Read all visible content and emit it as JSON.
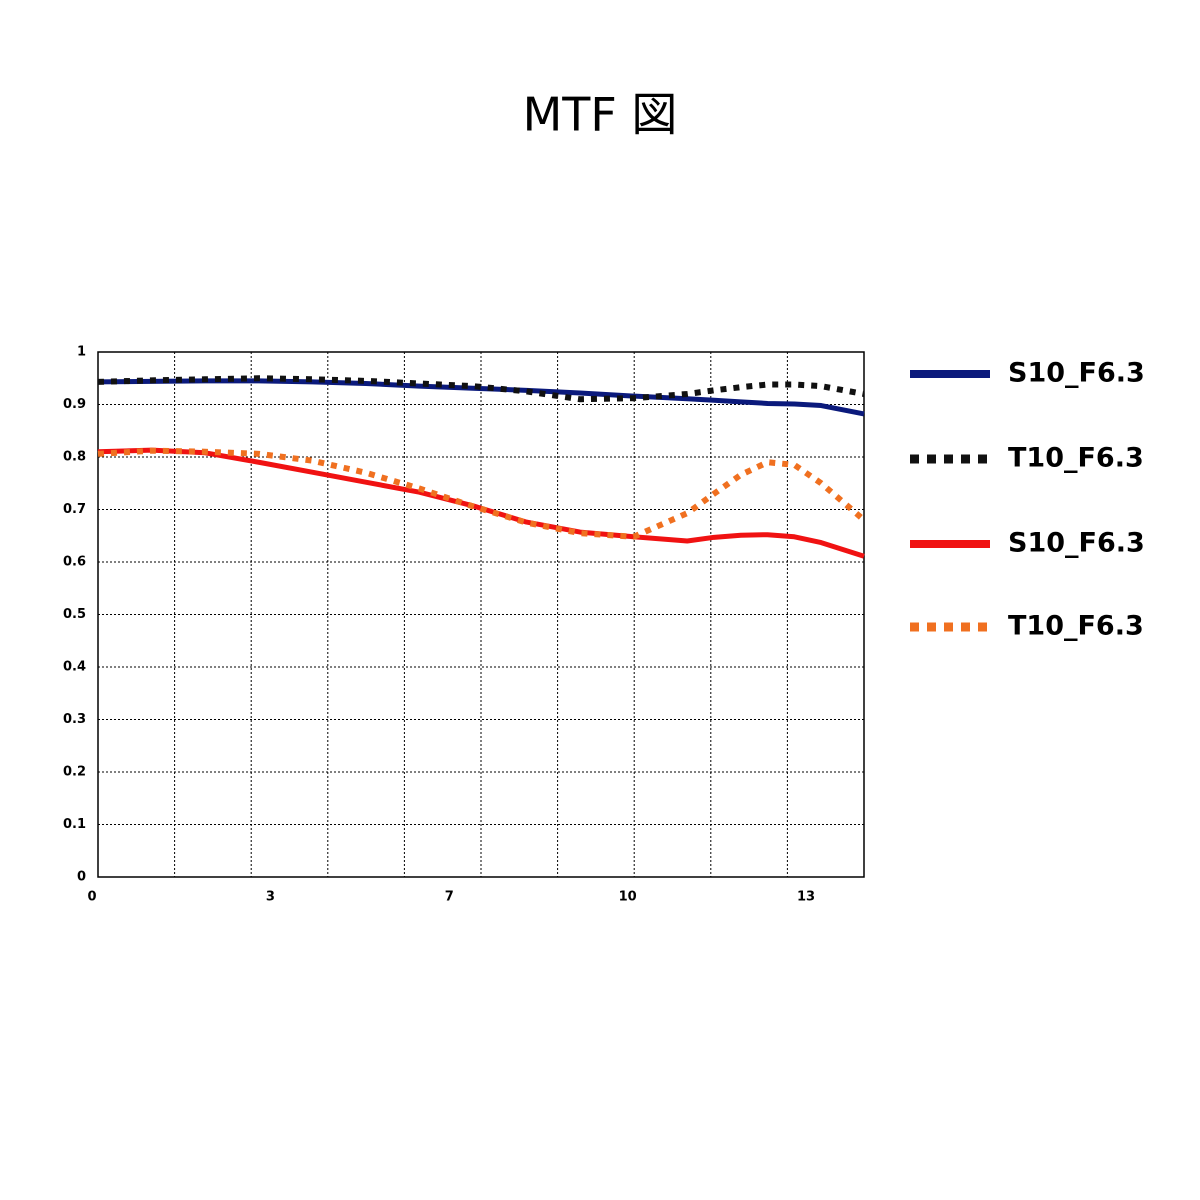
{
  "chart_data": {
    "type": "line",
    "title": "MTF 図",
    "x": [
      0,
      1,
      2,
      3,
      4,
      5,
      6,
      7,
      8,
      9,
      10,
      11,
      11.5,
      12,
      12.5,
      13,
      13.5,
      14.3
    ],
    "xlim": [
      0,
      14.3
    ],
    "xticks": [
      0,
      {
        "value": 3.33,
        "label": "3"
      },
      {
        "value": 6.67,
        "label": "7"
      },
      10,
      {
        "value": 13.33,
        "label": "13"
      }
    ],
    "ylim": [
      0,
      1
    ],
    "yticks": [
      0,
      0.1,
      0.2,
      0.3,
      0.4,
      0.5,
      0.6,
      0.7,
      0.8,
      0.9,
      1
    ],
    "grid": true,
    "series": [
      {
        "name": "S10_F6.3",
        "color": "#0b1a7c",
        "style": "solid",
        "values": [
          0.943,
          0.944,
          0.945,
          0.945,
          0.943,
          0.94,
          0.935,
          0.931,
          0.927,
          0.922,
          0.916,
          0.911,
          0.908,
          0.905,
          0.902,
          0.901,
          0.898,
          0.882
        ]
      },
      {
        "name": "T10_F6.3",
        "color": "#111111",
        "style": "dotted",
        "values": [
          0.943,
          0.946,
          0.948,
          0.95,
          0.948,
          0.945,
          0.94,
          0.935,
          0.925,
          0.91,
          0.912,
          0.92,
          0.927,
          0.933,
          0.938,
          0.938,
          0.935,
          0.92
        ]
      },
      {
        "name": "S10_F6.3",
        "color": "#f01212",
        "style": "solid",
        "values": [
          0.81,
          0.813,
          0.808,
          0.79,
          0.771,
          0.752,
          0.733,
          0.707,
          0.676,
          0.657,
          0.648,
          0.64,
          0.647,
          0.651,
          0.652,
          0.648,
          0.637,
          0.611
        ]
      },
      {
        "name": "T10_F6.3",
        "color": "#f07020",
        "style": "dotted",
        "values": [
          0.806,
          0.812,
          0.81,
          0.806,
          0.793,
          0.77,
          0.74,
          0.706,
          0.675,
          0.655,
          0.648,
          0.693,
          0.73,
          0.766,
          0.79,
          0.785,
          0.75,
          0.68
        ]
      }
    ]
  }
}
